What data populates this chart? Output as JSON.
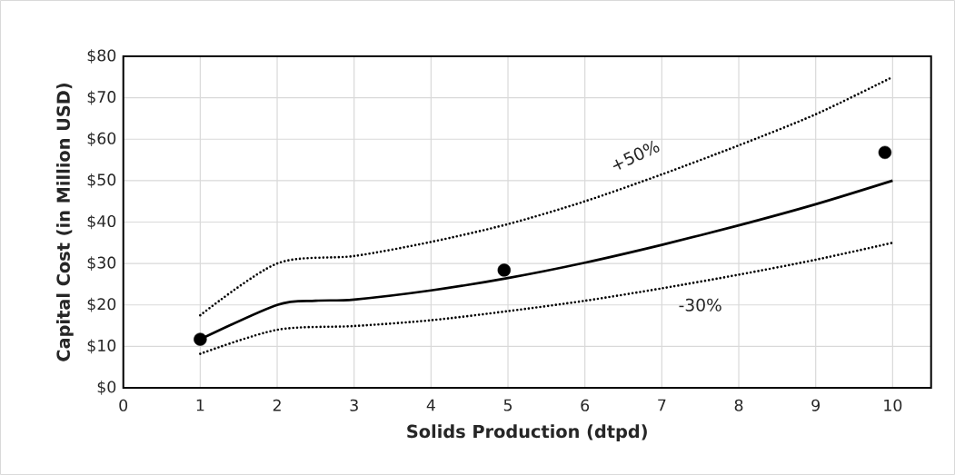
{
  "chart_data": {
    "type": "line",
    "xlabel": "Solids Production (dtpd)",
    "ylabel": "Capital Cost (in Million USD)",
    "xlim": [
      0,
      10.5
    ],
    "xticks": [
      0,
      1,
      2,
      3,
      4,
      5,
      6,
      7,
      8,
      9,
      10
    ],
    "ylim": [
      0,
      80
    ],
    "yticks": [
      {
        "value": 0,
        "label": "$0"
      },
      {
        "value": 10,
        "label": "$10"
      },
      {
        "value": 20,
        "label": "$20"
      },
      {
        "value": 30,
        "label": "$30"
      },
      {
        "value": 40,
        "label": "$40"
      },
      {
        "value": 50,
        "label": "$50"
      },
      {
        "value": 60,
        "label": "$60"
      },
      {
        "value": 70,
        "label": "$70"
      },
      {
        "value": 80,
        "label": "$80"
      }
    ],
    "grid": true,
    "series": [
      {
        "color": "#000000",
        "line_style": "dotted",
        "marker": "none",
        "x": [
          1,
          2,
          3,
          4,
          5,
          6,
          7,
          8,
          9,
          10
        ],
        "values": [
          17.5,
          30,
          31.8,
          35.2,
          39.5,
          45,
          51.5,
          58.5,
          66,
          75
        ]
      },
      {
        "color": "#000000",
        "line_style": "solid",
        "marker": "none",
        "x": [
          1,
          2,
          2.5,
          3,
          4,
          5,
          6,
          7,
          8,
          9,
          10
        ],
        "values": [
          11.7,
          20,
          21,
          21.3,
          23.5,
          26.5,
          30.2,
          34.5,
          39.2,
          44.3,
          50
        ]
      },
      {
        "color": "#000000",
        "line_style": "dotted",
        "marker": "none",
        "x": [
          1,
          2,
          3,
          4,
          5,
          6,
          7,
          8,
          9,
          10
        ],
        "values": [
          8.2,
          14,
          14.9,
          16.3,
          18.5,
          21,
          24,
          27.3,
          30.9,
          35
        ]
      },
      {
        "type": "scatter",
        "color": "#000000",
        "marker": "circle",
        "x": [
          1,
          4.95,
          9.9
        ],
        "values": [
          11.7,
          28.4,
          56.8
        ]
      }
    ],
    "annotations": [
      "+50%",
      "-30%"
    ]
  }
}
